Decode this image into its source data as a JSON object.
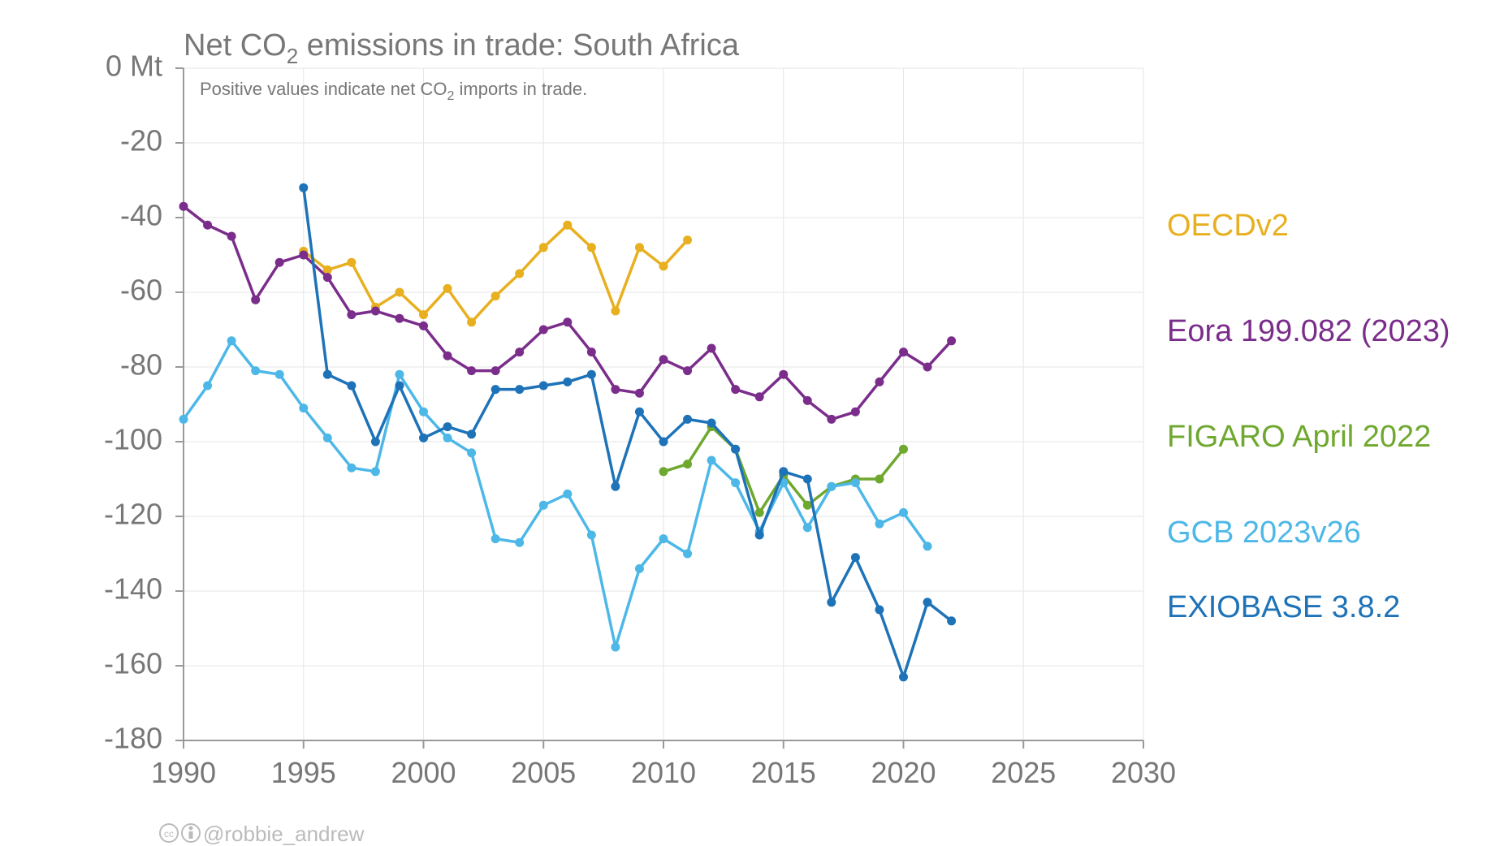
{
  "chart_data": {
    "type": "line",
    "title": {
      "pre": "Net CO",
      "sub": "2",
      "post": " emissions in trade: South Africa"
    },
    "subtitle": {
      "pre": "Positive values indicate net CO",
      "sub": "2",
      "post": " imports in trade."
    },
    "credit": "@robbie_andrew",
    "credit_icons": [
      "creative-commons-icon",
      "attribution-icon"
    ],
    "y_unit": "Mt",
    "xlim": [
      1990,
      2030
    ],
    "ylim": [
      -180,
      0
    ],
    "x_ticks": [
      1990,
      1995,
      2000,
      2005,
      2010,
      2015,
      2020,
      2025,
      2030
    ],
    "y_ticks": [
      0,
      -20,
      -40,
      -60,
      -80,
      -100,
      -120,
      -140,
      -160,
      -180
    ],
    "y_tick_labels": [
      "0 Mt",
      "-20",
      "-40",
      "-60",
      "-80",
      "-100",
      "-120",
      "-140",
      "-160",
      "-180"
    ],
    "grid": true,
    "legend_placement": "right",
    "series": [
      {
        "name": "OECDv2",
        "color": "#E8B020",
        "x": [
          1995,
          1996,
          1997,
          1998,
          1999,
          2000,
          2001,
          2002,
          2003,
          2004,
          2005,
          2006,
          2007,
          2008,
          2009,
          2010,
          2011
        ],
        "y": [
          -49,
          -54,
          -52,
          -64,
          -60,
          -66,
          -59,
          -68,
          -61,
          -55,
          -48,
          -42,
          -48,
          -65,
          -48,
          -53,
          -46
        ]
      },
      {
        "name": "Eora 199.082 (2023)",
        "color": "#7B2D8B",
        "x": [
          1990,
          1991,
          1992,
          1993,
          1994,
          1995,
          1996,
          1997,
          1998,
          1999,
          2000,
          2001,
          2002,
          2003,
          2004,
          2005,
          2006,
          2007,
          2008,
          2009,
          2010,
          2011,
          2012,
          2013,
          2014,
          2015,
          2016,
          2017,
          2018,
          2019,
          2020,
          2021,
          2022
        ],
        "y": [
          -37,
          -42,
          -45,
          -62,
          -52,
          -50,
          -56,
          -66,
          -65,
          -67,
          -69,
          -77,
          -81,
          -81,
          -76,
          -70,
          -68,
          -76,
          -86,
          -87,
          -78,
          -81,
          -75,
          -86,
          -88,
          -82,
          -89,
          -94,
          -92,
          -84,
          -76,
          -80,
          -73
        ]
      },
      {
        "name": "FIGARO April 2022",
        "color": "#6FA82F",
        "x": [
          2010,
          2011,
          2012,
          2013,
          2014,
          2015,
          2016,
          2017,
          2018,
          2019,
          2020
        ],
        "y": [
          -108,
          -106,
          -96,
          -102,
          -119,
          -109,
          -117,
          -112,
          -110,
          -110,
          -102
        ]
      },
      {
        "name": "GCB 2023v26",
        "color": "#4DB8E8",
        "x": [
          1990,
          1991,
          1992,
          1993,
          1994,
          1995,
          1996,
          1997,
          1998,
          1999,
          2000,
          2001,
          2002,
          2003,
          2004,
          2005,
          2006,
          2007,
          2008,
          2009,
          2010,
          2011,
          2012,
          2013,
          2014,
          2015,
          2016,
          2017,
          2018,
          2019,
          2020,
          2021
        ],
        "y": [
          -94,
          -85,
          -73,
          -81,
          -82,
          -91,
          -99,
          -107,
          -108,
          -82,
          -92,
          -99,
          -103,
          -126,
          -127,
          -117,
          -114,
          -125,
          -155,
          -134,
          -126,
          -130,
          -105,
          -111,
          -124,
          -111,
          -123,
          -112,
          -111,
          -122,
          -119,
          -128
        ]
      },
      {
        "name": "EXIOBASE 3.8.2",
        "color": "#1E73B8",
        "x": [
          1995,
          1996,
          1997,
          1998,
          1999,
          2000,
          2001,
          2002,
          2003,
          2004,
          2005,
          2006,
          2007,
          2008,
          2009,
          2010,
          2011,
          2012,
          2013,
          2014,
          2015,
          2016,
          2017,
          2018,
          2019,
          2020,
          2021,
          2022
        ],
        "y": [
          -32,
          -82,
          -85,
          -100,
          -85,
          -99,
          -96,
          -98,
          -86,
          -86,
          -85,
          -84,
          -82,
          -112,
          -92,
          -100,
          -94,
          -95,
          -102,
          -125,
          -108,
          -110,
          -143,
          -131,
          -145,
          -163,
          -143,
          -148
        ]
      }
    ]
  }
}
